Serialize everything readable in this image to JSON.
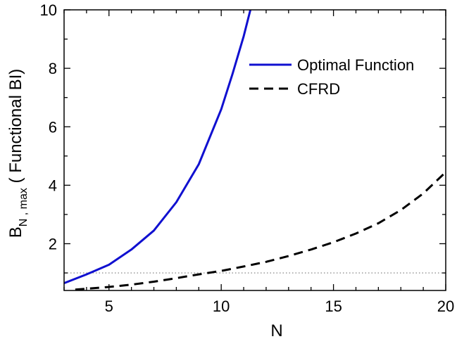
{
  "chart_data": {
    "type": "line",
    "title": "",
    "xlabel": "N",
    "ylabel": {
      "main": "B",
      "subscript": "N , max",
      "suffix": " ( Functional BI)"
    },
    "xlim": [
      3,
      20
    ],
    "ylim": [
      0.4,
      10
    ],
    "xticks": [
      5,
      10,
      15,
      20
    ],
    "yticks": [
      2,
      4,
      6,
      8,
      10
    ],
    "grid": false,
    "legend": "top-right",
    "series": [
      {
        "name": "Optimal Function",
        "color": "#1010d0",
        "dash": "solid",
        "x": [
          3,
          4,
          5,
          6,
          7,
          8,
          9,
          10,
          10.5,
          11,
          11.3
        ],
        "y": [
          0.65,
          0.95,
          1.28,
          1.8,
          2.45,
          3.42,
          4.72,
          6.6,
          7.8,
          9.1,
          10.0
        ]
      },
      {
        "name": "CFRD",
        "color": "#000000",
        "dash": "dashed",
        "x": [
          3.5,
          5,
          6,
          7,
          8,
          9,
          10,
          11,
          12,
          13,
          14,
          15,
          16,
          17,
          18,
          19,
          20
        ],
        "y": [
          0.43,
          0.52,
          0.6,
          0.7,
          0.82,
          0.95,
          1.07,
          1.22,
          1.38,
          1.58,
          1.8,
          2.05,
          2.35,
          2.7,
          3.15,
          3.72,
          4.45
        ]
      }
    ],
    "reference_line": {
      "y": 1.0,
      "color": "#777777",
      "style": "dotted"
    }
  }
}
